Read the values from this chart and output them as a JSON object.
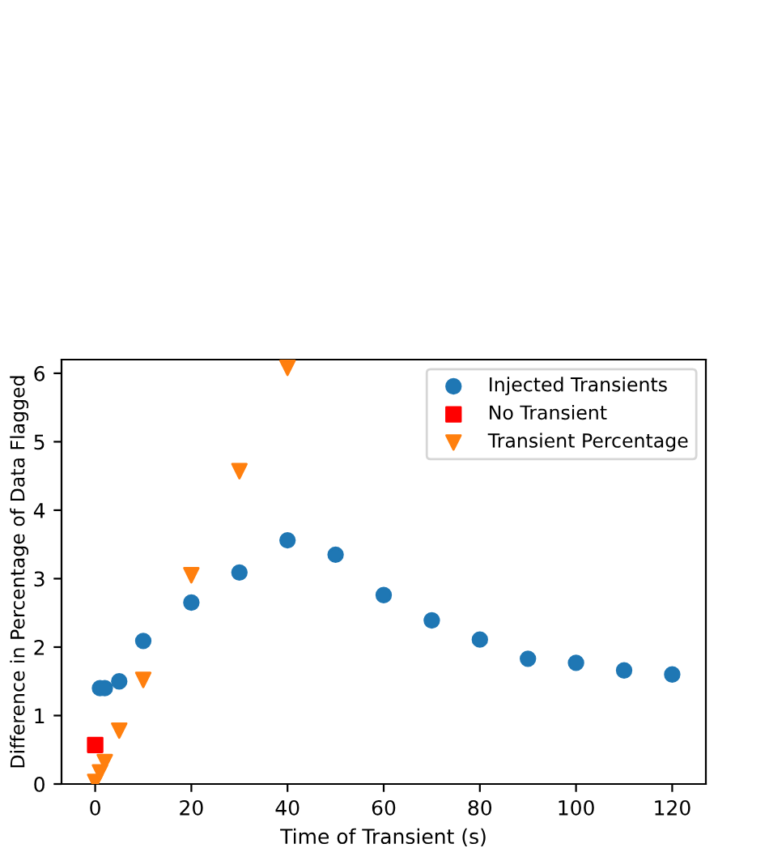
{
  "chart_data": {
    "type": "scatter",
    "xlabel": "Time of Transient (s)",
    "ylabel": "Difference in Percentage of Data Flagged",
    "xlim": [
      -7,
      127
    ],
    "ylim": [
      0,
      6.2
    ],
    "xticks": [
      0,
      20,
      40,
      60,
      80,
      100,
      120
    ],
    "yticks": [
      0,
      1,
      2,
      3,
      4,
      5,
      6
    ],
    "grid": false,
    "legend": "top right",
    "series": [
      {
        "name": "Injected Transients",
        "color": "#1f77b4",
        "marker": "circle",
        "x": [
          1,
          2,
          5,
          10,
          20,
          30,
          40,
          50,
          60,
          70,
          80,
          90,
          100,
          110,
          120
        ],
        "values": [
          1.4,
          1.4,
          1.5,
          2.09,
          2.65,
          3.09,
          3.56,
          3.35,
          2.76,
          2.39,
          2.11,
          1.83,
          1.77,
          1.66,
          1.6
        ]
      },
      {
        "name": "No Transient",
        "color": "#ff0000",
        "marker": "square",
        "x": [
          0
        ],
        "values": [
          0.57
        ]
      },
      {
        "name": "Transient Percentage",
        "color": "#ff7f0e",
        "marker": "triangle",
        "x": [
          0,
          1,
          2,
          5,
          10,
          20,
          30,
          40
        ],
        "values": [
          0.03,
          0.17,
          0.32,
          0.78,
          1.52,
          3.05,
          4.57,
          6.08
        ]
      }
    ]
  }
}
